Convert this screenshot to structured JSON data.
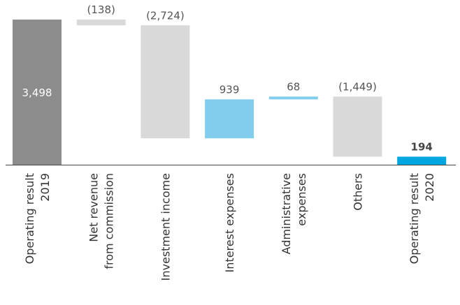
{
  "chart_data": {
    "type": "waterfall",
    "categories": [
      [
        "Operating result",
        "2019"
      ],
      [
        "Net revenue",
        "from commission"
      ],
      [
        "Investment income"
      ],
      [
        "Interest expenses"
      ],
      [
        "Administrative",
        "expenses"
      ],
      [
        "Others"
      ],
      [
        "Operating result",
        "2020"
      ]
    ],
    "values": [
      3498,
      -138,
      -2724,
      939,
      68,
      -1449,
      194
    ],
    "value_labels": [
      "3,498",
      "(138)",
      "(2,724)",
      "939",
      "68",
      "(1,449)",
      "194"
    ],
    "totals": [
      true,
      false,
      false,
      false,
      false,
      false,
      true
    ],
    "colors": [
      "#8c8c8c",
      "#d9d9d9",
      "#d9d9d9",
      "#82cdee",
      "#82cdee",
      "#d9d9d9",
      "#00a6e0"
    ],
    "ylim": [
      0,
      3600
    ]
  }
}
